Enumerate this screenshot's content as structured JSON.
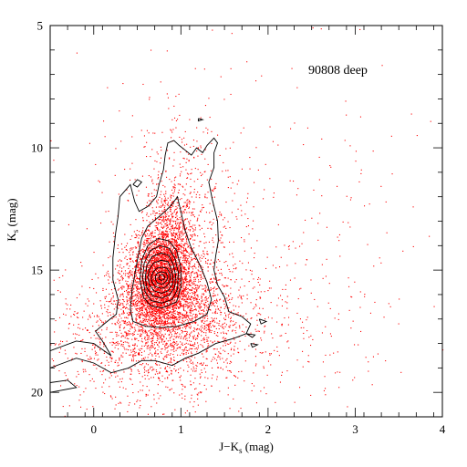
{
  "chart_data": {
    "type": "scatter",
    "title": "",
    "annotation": "90808 deep",
    "xlabel_main": "J−K",
    "xlabel_sub": "s",
    "xlabel_unit": " (mag)",
    "ylabel_main": "K",
    "ylabel_sub": "s",
    "ylabel_unit": " (mag)",
    "xlim": [
      -0.5,
      4
    ],
    "ylim": [
      21,
      5
    ],
    "y_inverted": true,
    "x_ticks": [
      0,
      1,
      2,
      3,
      4
    ],
    "x_tick_labels": [
      "0",
      "1",
      "2",
      "3",
      "4"
    ],
    "x_minor_step": 0.2,
    "y_ticks": [
      5,
      10,
      15,
      20
    ],
    "y_tick_labels": [
      "5",
      "10",
      "15",
      "20"
    ],
    "y_minor_step": 1,
    "grid": false,
    "point_color": "#ff0000",
    "contour_color": "#000000",
    "density_peak": {
      "x": 0.78,
      "y": 15.3
    },
    "series": [
      {
        "kind": "points",
        "clusters": [
          {
            "cx": 0.75,
            "cy": 15.4,
            "sx": 0.17,
            "sy": 1.0,
            "n": 2600
          },
          {
            "cx": 0.88,
            "cy": 13.8,
            "sx": 0.14,
            "sy": 1.1,
            "n": 700
          },
          {
            "cx": 0.85,
            "cy": 16.4,
            "sx": 0.38,
            "sy": 1.2,
            "n": 1500
          },
          {
            "cx": 0.95,
            "cy": 17.5,
            "sx": 0.6,
            "sy": 1.4,
            "n": 900
          },
          {
            "cx": 1.0,
            "cy": 12.5,
            "sx": 0.35,
            "sy": 2.2,
            "n": 500
          },
          {
            "cx": 1.6,
            "cy": 17.0,
            "sx": 0.9,
            "sy": 2.2,
            "n": 300
          },
          {
            "cx": 0.3,
            "cy": 18.8,
            "sx": 0.5,
            "sy": 1.2,
            "n": 280
          },
          {
            "cx": 1.7,
            "cy": 13.0,
            "sx": 1.3,
            "sy": 4.0,
            "n": 250
          }
        ]
      },
      {
        "kind": "contours",
        "levels": [
          [
            [
              0.78,
              16.55
            ],
            [
              0.65,
              16.45
            ],
            [
              0.57,
              16.1
            ],
            [
              0.53,
              15.4
            ],
            [
              0.55,
              14.6
            ],
            [
              0.62,
              14.0
            ],
            [
              0.74,
              13.7
            ],
            [
              0.86,
              13.8
            ],
            [
              0.95,
              14.2
            ],
            [
              1.0,
              14.9
            ],
            [
              1.0,
              15.7
            ],
            [
              0.95,
              16.3
            ],
            [
              0.78,
              16.55
            ]
          ],
          [
            [
              0.78,
              16.35
            ],
            [
              0.66,
              16.25
            ],
            [
              0.59,
              15.9
            ],
            [
              0.56,
              15.3
            ],
            [
              0.58,
              14.7
            ],
            [
              0.65,
              14.2
            ],
            [
              0.76,
              14.0
            ],
            [
              0.86,
              14.1
            ],
            [
              0.93,
              14.5
            ],
            [
              0.97,
              15.1
            ],
            [
              0.96,
              15.8
            ],
            [
              0.9,
              16.2
            ],
            [
              0.78,
              16.35
            ]
          ],
          [
            [
              0.78,
              16.15
            ],
            [
              0.68,
              16.05
            ],
            [
              0.61,
              15.75
            ],
            [
              0.59,
              15.3
            ],
            [
              0.61,
              14.8
            ],
            [
              0.67,
              14.45
            ],
            [
              0.77,
              14.3
            ],
            [
              0.86,
              14.4
            ],
            [
              0.91,
              14.75
            ],
            [
              0.94,
              15.2
            ],
            [
              0.93,
              15.7
            ],
            [
              0.87,
              16.0
            ],
            [
              0.78,
              16.15
            ]
          ],
          [
            [
              0.78,
              15.95
            ],
            [
              0.69,
              15.85
            ],
            [
              0.64,
              15.6
            ],
            [
              0.62,
              15.3
            ],
            [
              0.64,
              14.95
            ],
            [
              0.69,
              14.7
            ],
            [
              0.77,
              14.6
            ],
            [
              0.85,
              14.65
            ],
            [
              0.89,
              14.95
            ],
            [
              0.91,
              15.3
            ],
            [
              0.9,
              15.6
            ],
            [
              0.85,
              15.85
            ],
            [
              0.78,
              15.95
            ]
          ],
          [
            [
              0.78,
              15.75
            ],
            [
              0.71,
              15.68
            ],
            [
              0.67,
              15.5
            ],
            [
              0.66,
              15.3
            ],
            [
              0.68,
              15.08
            ],
            [
              0.72,
              14.92
            ],
            [
              0.78,
              14.88
            ],
            [
              0.84,
              14.92
            ],
            [
              0.87,
              15.1
            ],
            [
              0.88,
              15.32
            ],
            [
              0.86,
              15.55
            ],
            [
              0.82,
              15.7
            ],
            [
              0.78,
              15.75
            ]
          ],
          [
            [
              0.78,
              15.58
            ],
            [
              0.73,
              15.52
            ],
            [
              0.71,
              15.4
            ],
            [
              0.71,
              15.25
            ],
            [
              0.73,
              15.12
            ],
            [
              0.78,
              15.07
            ],
            [
              0.83,
              15.12
            ],
            [
              0.85,
              15.27
            ],
            [
              0.84,
              15.42
            ],
            [
              0.81,
              15.53
            ],
            [
              0.78,
              15.58
            ]
          ],
          [
            [
              0.78,
              15.42
            ],
            [
              0.75,
              15.38
            ],
            [
              0.745,
              15.3
            ],
            [
              0.755,
              15.22
            ],
            [
              0.78,
              15.19
            ],
            [
              0.805,
              15.22
            ],
            [
              0.815,
              15.3
            ],
            [
              0.805,
              15.38
            ],
            [
              0.78,
              15.42
            ]
          ],
          [
            [
              0.6,
              17.3
            ],
            [
              0.45,
              17.1
            ],
            [
              0.42,
              16.6
            ],
            [
              0.44,
              15.8
            ],
            [
              0.5,
              14.6
            ],
            [
              0.55,
              13.7
            ],
            [
              0.62,
              13.2
            ],
            [
              0.72,
              12.9
            ],
            [
              0.82,
              12.6
            ],
            [
              0.9,
              12.3
            ],
            [
              0.96,
              12.0
            ],
            [
              1.0,
              12.6
            ],
            [
              1.05,
              13.4
            ],
            [
              1.12,
              14.1
            ],
            [
              1.22,
              14.8
            ],
            [
              1.3,
              15.5
            ],
            [
              1.35,
              16.2
            ],
            [
              1.3,
              16.8
            ],
            [
              1.15,
              17.1
            ],
            [
              0.95,
              17.3
            ],
            [
              0.78,
              17.35
            ],
            [
              0.6,
              17.3
            ]
          ],
          [
            [
              0.2,
              18.5
            ],
            [
              0.0,
              18.0
            ],
            [
              -0.2,
              17.9
            ],
            [
              -0.5,
              18.3
            ],
            [
              -0.5,
              19.0
            ],
            [
              -0.2,
              18.6
            ],
            [
              0.0,
              18.8
            ],
            [
              0.2,
              19.2
            ],
            [
              0.4,
              19.0
            ],
            [
              0.55,
              18.7
            ],
            [
              0.7,
              18.7
            ],
            [
              0.9,
              18.9
            ],
            [
              1.05,
              18.6
            ],
            [
              1.2,
              18.4
            ],
            [
              1.4,
              18.0
            ],
            [
              1.6,
              17.8
            ],
            [
              1.75,
              17.6
            ],
            [
              1.8,
              17.2
            ],
            [
              1.7,
              16.9
            ],
            [
              1.55,
              16.7
            ],
            [
              1.5,
              16.1
            ],
            [
              1.42,
              15.6
            ],
            [
              1.38,
              15.0
            ],
            [
              1.4,
              14.4
            ],
            [
              1.43,
              13.8
            ],
            [
              1.42,
              13.0
            ],
            [
              1.36,
              12.1
            ],
            [
              1.32,
              11.4
            ],
            [
              1.38,
              10.8
            ],
            [
              1.38,
              10.2
            ],
            [
              1.42,
              9.8
            ],
            [
              1.38,
              9.6
            ],
            [
              1.3,
              9.9
            ],
            [
              1.25,
              10.2
            ],
            [
              1.18,
              10.0
            ],
            [
              1.12,
              10.3
            ],
            [
              1.05,
              10.1
            ],
            [
              0.98,
              9.9
            ],
            [
              0.92,
              9.7
            ],
            [
              0.85,
              9.8
            ],
            [
              0.82,
              10.3
            ],
            [
              0.8,
              10.9
            ],
            [
              0.75,
              11.5
            ],
            [
              0.72,
              12.0
            ],
            [
              0.62,
              12.4
            ],
            [
              0.52,
              12.6
            ],
            [
              0.47,
              12.2
            ],
            [
              0.42,
              11.5
            ],
            [
              0.3,
              12.0
            ],
            [
              0.28,
              12.8
            ],
            [
              0.25,
              13.5
            ],
            [
              0.22,
              14.5
            ],
            [
              0.22,
              15.4
            ],
            [
              0.28,
              16.2
            ],
            [
              0.26,
              16.8
            ],
            [
              0.12,
              17.2
            ],
            [
              0.02,
              17.5
            ],
            [
              0.1,
              17.9
            ],
            [
              0.2,
              18.5
            ]
          ],
          [
            [
              0.45,
              11.5
            ],
            [
              0.5,
              11.3
            ],
            [
              0.55,
              11.4
            ],
            [
              0.5,
              11.6
            ],
            [
              0.45,
              11.5
            ]
          ],
          [
            [
              1.9,
              17.0
            ],
            [
              1.98,
              17.1
            ],
            [
              1.92,
              17.2
            ],
            [
              1.9,
              17.0
            ]
          ],
          [
            [
              1.75,
              17.6
            ],
            [
              1.85,
              17.65
            ],
            [
              1.82,
              17.75
            ],
            [
              1.75,
              17.6
            ]
          ],
          [
            [
              1.8,
              18.0
            ],
            [
              1.88,
              18.05
            ],
            [
              1.82,
              18.15
            ],
            [
              1.8,
              18.0
            ]
          ],
          [
            [
              -0.5,
              19.6
            ],
            [
              -0.3,
              19.5
            ],
            [
              -0.2,
              19.8
            ],
            [
              -0.5,
              20.0
            ],
            [
              -0.5,
              19.6
            ]
          ],
          [
            [
              1.2,
              8.8
            ],
            [
              1.25,
              8.85
            ],
            [
              1.2,
              8.9
            ],
            [
              1.2,
              8.8
            ]
          ]
        ]
      }
    ]
  }
}
